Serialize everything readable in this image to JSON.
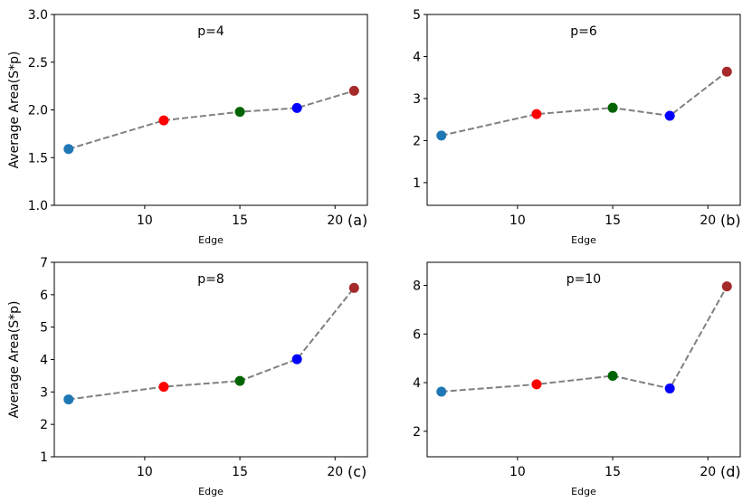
{
  "chart_data": [
    {
      "type": "line",
      "panel_label": "(a)",
      "annotation": "p=4",
      "xlabel": "Edge",
      "ylabel": "Average Area(S*p)",
      "xlim": [
        5.25,
        21.7
      ],
      "ylim": [
        1.0,
        3.0
      ],
      "xticks": [
        10,
        15,
        20
      ],
      "yticks": [
        "1.0",
        "1.5",
        "2.0",
        "2.5",
        "3.0"
      ],
      "x": [
        6,
        11,
        15,
        18,
        21
      ],
      "y": [
        1.59,
        1.89,
        1.98,
        2.02,
        2.2
      ],
      "line_style": "dashed",
      "line_color": "#808080",
      "point_colors": [
        "#1f77b4",
        "#ff0000",
        "#006400",
        "#0000ff",
        "#a52a2a"
      ],
      "grid": false
    },
    {
      "type": "line",
      "panel_label": "(b)",
      "annotation": "p=6",
      "xlabel": "Edge",
      "ylabel": "",
      "xlim": [
        5.25,
        21.7
      ],
      "ylim": [
        0.46,
        5.0
      ],
      "xticks": [
        10,
        15,
        20
      ],
      "yticks": [
        "1",
        "2",
        "3",
        "4",
        "5"
      ],
      "x": [
        6,
        11,
        15,
        18,
        21
      ],
      "y": [
        2.12,
        2.63,
        2.78,
        2.59,
        3.64
      ],
      "line_style": "dashed",
      "line_color": "#808080",
      "point_colors": [
        "#1f77b4",
        "#ff0000",
        "#006400",
        "#0000ff",
        "#a52a2a"
      ],
      "grid": false
    },
    {
      "type": "line",
      "panel_label": "(c)",
      "annotation": "p=8",
      "xlabel": "Edge",
      "ylabel": "Average Area(S*p)",
      "xlim": [
        5.25,
        21.7
      ],
      "ylim": [
        1.0,
        7.0
      ],
      "xticks": [
        10,
        15,
        20
      ],
      "yticks": [
        "1",
        "2",
        "3",
        "4",
        "5",
        "6",
        "7"
      ],
      "x": [
        6,
        11,
        15,
        18,
        21
      ],
      "y": [
        2.77,
        3.16,
        3.34,
        4.01,
        6.21
      ],
      "line_style": "dashed",
      "line_color": "#808080",
      "point_colors": [
        "#1f77b4",
        "#ff0000",
        "#006400",
        "#0000ff",
        "#a52a2a"
      ],
      "grid": false
    },
    {
      "type": "line",
      "panel_label": "(d)",
      "annotation": "p=10",
      "xlabel": "Edge",
      "ylabel": "",
      "xlim": [
        5.25,
        21.7
      ],
      "ylim": [
        0.95,
        8.95
      ],
      "xticks": [
        10,
        15,
        20
      ],
      "yticks": [
        "2",
        "4",
        "6",
        "8"
      ],
      "x": [
        6,
        11,
        15,
        18,
        21
      ],
      "y": [
        3.63,
        3.93,
        4.28,
        3.76,
        7.96
      ],
      "line_style": "dashed",
      "line_color": "#808080",
      "point_colors": [
        "#1f77b4",
        "#ff0000",
        "#006400",
        "#0000ff",
        "#a52a2a"
      ],
      "grid": false
    }
  ]
}
